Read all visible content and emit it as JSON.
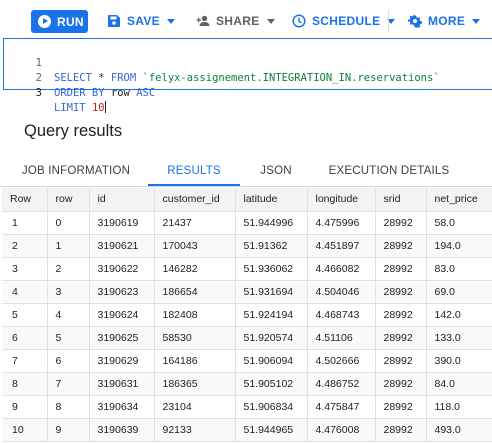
{
  "toolbar": {
    "run_label": "RUN",
    "save_label": "SAVE",
    "share_label": "SHARE",
    "schedule_label": "SCHEDULE",
    "more_label": "MORE"
  },
  "editor": {
    "lines": [
      {
        "num": "1",
        "kw1": "SELECT",
        "mid": " * ",
        "kw2": "FROM",
        "str": "`felyx-assignement.INTEGRATION_IN.reservations`"
      },
      {
        "num": "2",
        "kw1": "ORDER BY",
        "rest": " row ",
        "kw2": "ASC"
      },
      {
        "num": "3",
        "kw1": "LIMIT",
        "rest": " ",
        "num_val": "10"
      }
    ]
  },
  "results": {
    "title": "Query results",
    "tabs": [
      "JOB INFORMATION",
      "RESULTS",
      "JSON",
      "EXECUTION DETAILS"
    ],
    "active_tab": "RESULTS",
    "columns": [
      "Row",
      "row",
      "id",
      "customer_id",
      "latitude",
      "longitude",
      "srid",
      "net_price"
    ],
    "rows": [
      [
        "1",
        "0",
        "3190619",
        "21437",
        "51.944996",
        "4.475996",
        "28992",
        "58.0"
      ],
      [
        "2",
        "1",
        "3190621",
        "170043",
        "51.91362",
        "4.451897",
        "28992",
        "194.0"
      ],
      [
        "3",
        "2",
        "3190622",
        "146282",
        "51.936062",
        "4.466082",
        "28992",
        "83.0"
      ],
      [
        "4",
        "3",
        "3190623",
        "186654",
        "51.931694",
        "4.504046",
        "28992",
        "69.0"
      ],
      [
        "5",
        "4",
        "3190624",
        "182408",
        "51.924194",
        "4.468743",
        "28992",
        "142.0"
      ],
      [
        "6",
        "5",
        "3190625",
        "58530",
        "51.920574",
        "4.51106",
        "28992",
        "133.0"
      ],
      [
        "7",
        "6",
        "3190629",
        "164186",
        "51.906094",
        "4.502666",
        "28992",
        "390.0"
      ],
      [
        "8",
        "7",
        "3190631",
        "186365",
        "51.905102",
        "4.486752",
        "28992",
        "84.0"
      ],
      [
        "9",
        "8",
        "3190634",
        "23104",
        "51.906834",
        "4.475847",
        "28992",
        "118.0"
      ],
      [
        "10",
        "9",
        "3190639",
        "92133",
        "51.944965",
        "4.476008",
        "28992",
        "493.0"
      ]
    ]
  }
}
